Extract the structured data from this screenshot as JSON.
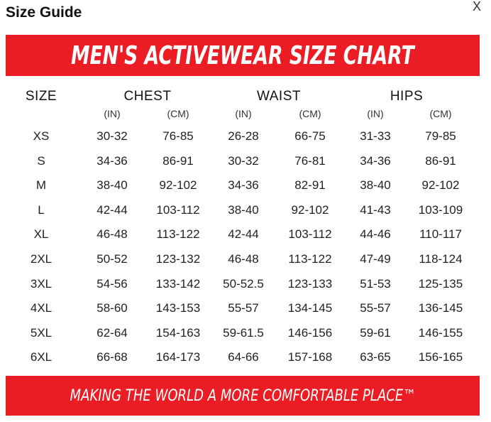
{
  "modal": {
    "title": "Size Guide",
    "close_label": "X"
  },
  "chart_data": {
    "type": "table",
    "title": "MEN'S ACTIVEWEAR SIZE CHART",
    "footer": "MAKING THE WORLD A MORE COMFORTABLE PLACE™",
    "headers": {
      "size": "SIZE",
      "chest": "CHEST",
      "waist": "WAIST",
      "hips": "HIPS",
      "sub": [
        "(IN)",
        "(CM)",
        "(IN)",
        "(CM)",
        "(IN)",
        "(CM)"
      ]
    },
    "rows": [
      {
        "size": "XS",
        "chest_in": "30-32",
        "chest_cm": "76-85",
        "waist_in": "26-28",
        "waist_cm": "66-75",
        "hips_in": "31-33",
        "hips_cm": "79-85"
      },
      {
        "size": "S",
        "chest_in": "34-36",
        "chest_cm": "86-91",
        "waist_in": "30-32",
        "waist_cm": "76-81",
        "hips_in": "34-36",
        "hips_cm": "86-91"
      },
      {
        "size": "M",
        "chest_in": "38-40",
        "chest_cm": "92-102",
        "waist_in": "34-36",
        "waist_cm": "82-91",
        "hips_in": "38-40",
        "hips_cm": "92-102"
      },
      {
        "size": "L",
        "chest_in": "42-44",
        "chest_cm": "103-112",
        "waist_in": "38-40",
        "waist_cm": "92-102",
        "hips_in": "41-43",
        "hips_cm": "103-109"
      },
      {
        "size": "XL",
        "chest_in": "46-48",
        "chest_cm": "113-122",
        "waist_in": "42-44",
        "waist_cm": "103-112",
        "hips_in": "44-46",
        "hips_cm": "110-117"
      },
      {
        "size": "2XL",
        "chest_in": "50-52",
        "chest_cm": "123-132",
        "waist_in": "46-48",
        "waist_cm": "113-122",
        "hips_in": "47-49",
        "hips_cm": "118-124"
      },
      {
        "size": "3XL",
        "chest_in": "54-56",
        "chest_cm": "133-142",
        "waist_in": "50-52.5",
        "waist_cm": "123-133",
        "hips_in": "51-53",
        "hips_cm": "125-135"
      },
      {
        "size": "4XL",
        "chest_in": "58-60",
        "chest_cm": "143-153",
        "waist_in": "55-57",
        "waist_cm": "134-145",
        "hips_in": "55-57",
        "hips_cm": "136-145"
      },
      {
        "size": "5XL",
        "chest_in": "62-64",
        "chest_cm": "154-163",
        "waist_in": "59-61.5",
        "waist_cm": "146-156",
        "hips_in": "59-61",
        "hips_cm": "146-155"
      },
      {
        "size": "6XL",
        "chest_in": "66-68",
        "chest_cm": "164-173",
        "waist_in": "64-66",
        "waist_cm": "157-168",
        "hips_in": "63-65",
        "hips_cm": "156-165"
      }
    ]
  },
  "colors": {
    "banner_red": "#ec1c24",
    "text": "#222222"
  }
}
